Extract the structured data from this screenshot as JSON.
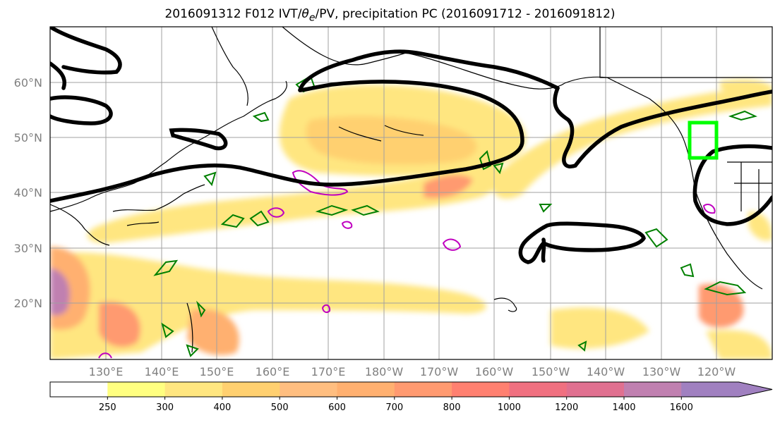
{
  "title": "2016091312 F012 IVT/θe/PV, precipitation PC (2016091712 - 2016091812)",
  "lat_labels": [
    "60°N",
    "50°N",
    "40°N",
    "30°N",
    "20°N"
  ],
  "lon_labels": [
    "130°E",
    "140°E",
    "150°E",
    "160°E",
    "170°E",
    "180°W",
    "170°W",
    "160°W",
    "150°W",
    "140°W",
    "130°W",
    "120°W"
  ],
  "colorbar": {
    "ticks": [
      "250",
      "300",
      "400",
      "500",
      "600",
      "700",
      "800",
      "1000",
      "1200",
      "1400",
      "1600"
    ],
    "colors": [
      "#ffffff",
      "#ffff80",
      "#ffe680",
      "#ffd070",
      "#ffbe80",
      "#ffb070",
      "#ff9a70",
      "#ff8070",
      "#f07080",
      "#e07090",
      "#c080b0",
      "#a080c0"
    ],
    "extend": "max"
  },
  "colors": {
    "ivt_contour": "#000000",
    "theta_e": "#008000",
    "pv": "#c000c0",
    "box": "#00ff00",
    "coast": "#000000",
    "grid": "#a0a0a0"
  }
}
